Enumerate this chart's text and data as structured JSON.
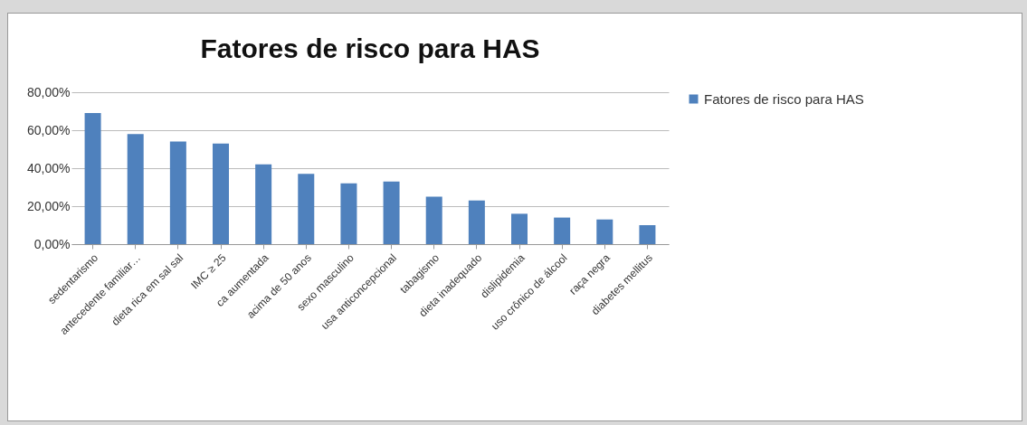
{
  "chart_data": {
    "type": "bar",
    "title": "Fatores de risco para HAS",
    "categories": [
      "sedentarismo",
      "antecedente familiar…",
      "dieta rica em sal sal",
      "IMC ≥ 25",
      "ca  aumentada",
      "acima de 50 anos",
      "sexo masculino",
      "usa anticoncepcional",
      "tabagismo",
      "dieta inadequado",
      "dislipidemia",
      "uso crônico de álcool",
      "raça negra",
      "diabetes mellitus"
    ],
    "series": [
      {
        "name": "Fatores de risco para HAS",
        "color": "#4f81bd",
        "values": [
          69,
          58,
          54,
          53,
          42,
          37,
          32,
          33,
          25,
          23,
          16,
          14,
          13,
          10
        ]
      }
    ],
    "ylim": [
      0,
      80
    ],
    "yticks": [
      {
        "value": 0,
        "label": "0,00%"
      },
      {
        "value": 20,
        "label": "20,00%"
      },
      {
        "value": 40,
        "label": "40,00%"
      },
      {
        "value": 60,
        "label": "60,00%"
      },
      {
        "value": 80,
        "label": "80,00%"
      }
    ],
    "grid": "y",
    "legend": "right"
  }
}
